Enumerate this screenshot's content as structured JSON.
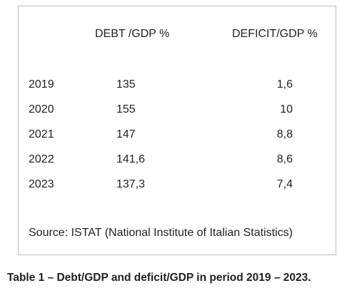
{
  "table": {
    "columns": [
      "DEBT /GDP %",
      "DEFICIT/GDP %"
    ],
    "rows": [
      [
        "2019",
        "135",
        "1,6"
      ],
      [
        "2020",
        "155",
        "10"
      ],
      [
        "2021",
        "147",
        "8,8"
      ],
      [
        "2022",
        "141,6",
        "8,6"
      ],
      [
        "2023",
        "137,3",
        "7,4"
      ]
    ]
  },
  "source": "Source: ISTAT (National Institute of Italian Statistics)",
  "caption": "Table 1 – Debt/GDP and deficit/GDP in period 2019 – 2023."
}
